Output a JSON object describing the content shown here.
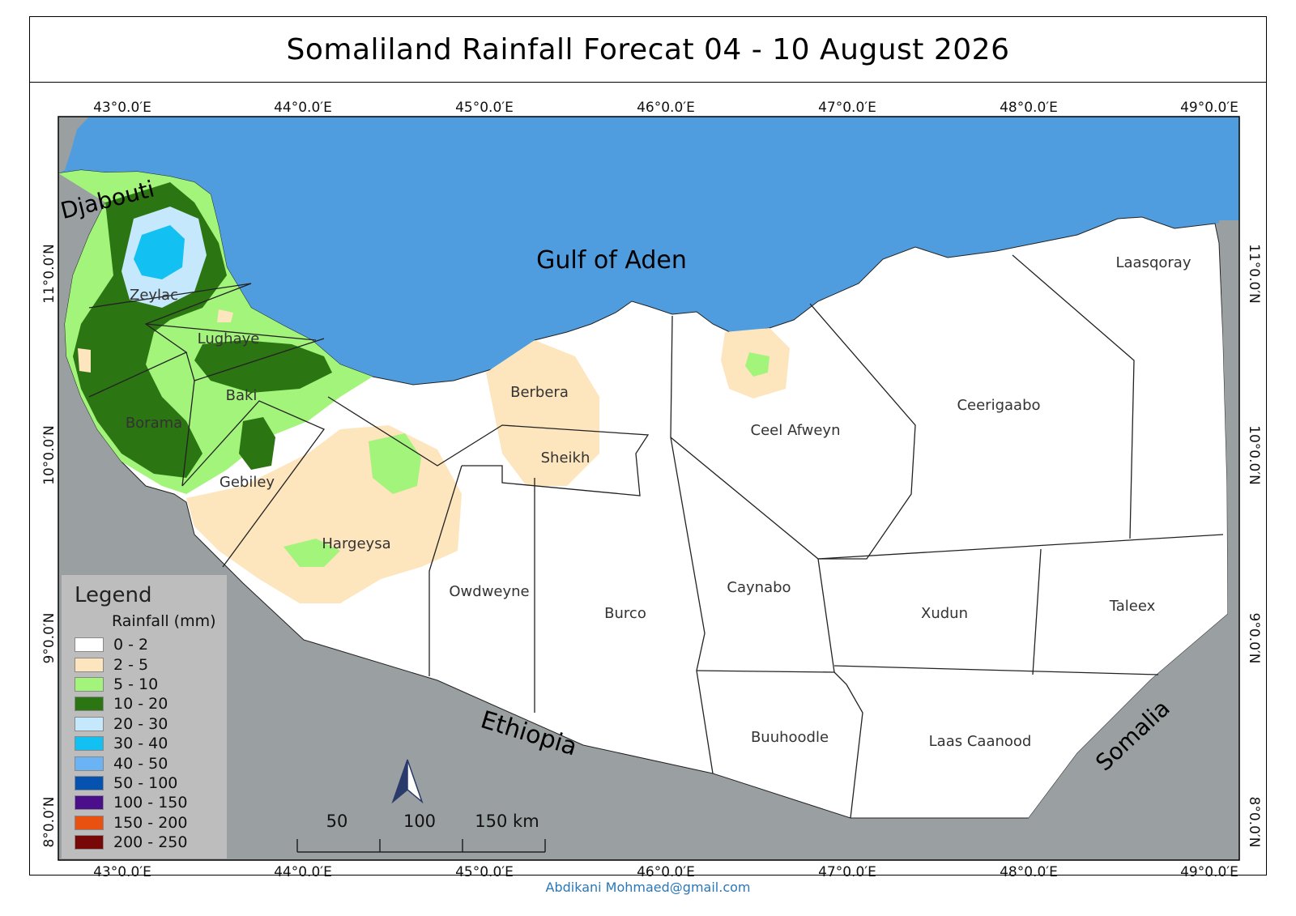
{
  "title": "Somaliland Rainfall Forecat 04 - 10  August  2026",
  "footer": "Abdikani Mohmaed@gmail.com",
  "longitude_ticks": [
    "43°0.0′E",
    "44°0.0′E",
    "45°0.0′E",
    "46°0.0′E",
    "47°0.0′E",
    "48°0.0′E",
    "49°0.0′E"
  ],
  "latitude_ticks": [
    "11°0.0′N",
    "10°0.0′N",
    "9°0.0′N",
    "8°0.0′N"
  ],
  "sea_label": "Gulf of Aden",
  "country_labels": {
    "djibouti": "Djabouti",
    "ethiopia": "Ethiopia",
    "somalia": "Somalia"
  },
  "districts": [
    "Zeylac",
    "Lughaye",
    "Baki",
    "Borama",
    "Gebiley",
    "Hargeysa",
    "Berbera",
    "Sheikh",
    "Owdweyne",
    "Burco",
    "Ceel Afweyn",
    "Ceerigaabo",
    "Laasqoray",
    "Caynabo",
    "Xudun",
    "Taleex",
    "Buuhoodle",
    "Laas Caanood"
  ],
  "legend": {
    "title": "Legend",
    "unit": "Rainfall (mm)",
    "classes": [
      {
        "label": "0 - 2",
        "color": "#ffffff"
      },
      {
        "label": "2 - 5",
        "color": "#fde5bd"
      },
      {
        "label": "5 - 10",
        "color": "#a3f47a"
      },
      {
        "label": "10 - 20",
        "color": "#2b7512"
      },
      {
        "label": "20 - 30",
        "color": "#c6e8fc"
      },
      {
        "label": "30 - 40",
        "color": "#12c1f2"
      },
      {
        "label": "40 - 50",
        "color": "#6ab3f5"
      },
      {
        "label": "50 - 100",
        "color": "#0652b0"
      },
      {
        "label": "100 - 150",
        "color": "#4c0f8c"
      },
      {
        "label": "150 - 200",
        "color": "#e85110"
      },
      {
        "label": "200 - 250",
        "color": "#780707"
      }
    ]
  },
  "scale_bar": {
    "labels": [
      "50",
      "100",
      "150 km"
    ]
  },
  "colors": {
    "sea": "#4f9ddf",
    "neighbors": "#9a9fa1",
    "land": "#ffffff"
  }
}
